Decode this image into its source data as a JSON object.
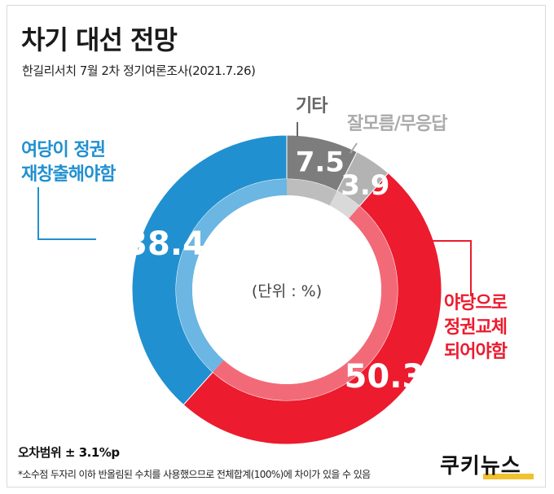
{
  "title": "차기 대선 전망",
  "subtitle": "한길리서치 7월 2차 정기여론조사(2021.7.26)",
  "unit_label": "(단위 : %)",
  "margin_of_error": "오차범위 ± 3.1%p",
  "footnote": "*소수점 두자리 이하 반올림된 수치를 사용했으므로 전체합계(100%)에 차이가 있을 수 있음",
  "brand": "쿠키뉴스",
  "chart_data": {
    "type": "pie",
    "donut": true,
    "categories": [
      "기타",
      "잘모름/무응답",
      "야당으로 정권교체 되어야함",
      "여당이 정권 재창출해야함"
    ],
    "values": [
      7.5,
      3.9,
      50.3,
      38.4
    ],
    "value_labels": [
      "7.5",
      "3.9",
      "50.3",
      "38.4"
    ],
    "colors": [
      "#7d7d7d",
      "#b3b3b3",
      "#ec1b2e",
      "#2190d0"
    ],
    "inner_colors": [
      "#bdbdbd",
      "#d9d9d9",
      "#f26a78",
      "#6bb6e2"
    ]
  },
  "labels": {
    "etc": "기타",
    "dk": "잘모름/무응답",
    "ruling_line1": "여당이 정권",
    "ruling_line2": "재창출해야함",
    "opp_line1": "야당으로",
    "opp_line2": "정권교체",
    "opp_line3": "되어야함"
  }
}
